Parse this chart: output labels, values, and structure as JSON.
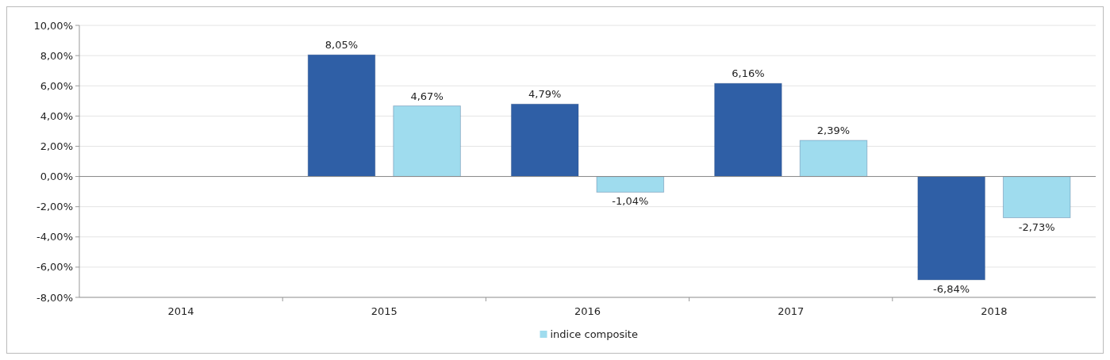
{
  "chart_data": {
    "type": "bar",
    "categories": [
      "2014",
      "2015",
      "2016",
      "2017",
      "2018"
    ],
    "series": [
      {
        "color": "#2f5fa6",
        "values": [
          null,
          8.05,
          4.79,
          6.16,
          -6.84
        ],
        "value_labels": [
          null,
          "8,05%",
          "4,79%",
          "6,16%",
          "-6,84%"
        ]
      },
      {
        "name": "indice composite",
        "color": "#9fdcee",
        "values": [
          null,
          4.67,
          -1.04,
          2.39,
          -2.73
        ],
        "value_labels": [
          null,
          "4,67%",
          "-1,04%",
          "2,39%",
          "-2,73%"
        ]
      }
    ],
    "ylim": [
      -8,
      10
    ],
    "yticks": [
      {
        "value": -8,
        "label": "-8,00%"
      },
      {
        "value": -6,
        "label": "-6,00%"
      },
      {
        "value": -4,
        "label": "-4,00%"
      },
      {
        "value": -2,
        "label": "-2,00%"
      },
      {
        "value": 0,
        "label": "0,00%"
      },
      {
        "value": 2,
        "label": "2,00%"
      },
      {
        "value": 4,
        "label": "4,00%"
      },
      {
        "value": 6,
        "label": "6,00%"
      },
      {
        "value": 8,
        "label": "8,00%"
      },
      {
        "value": 10,
        "label": "10,00%"
      }
    ],
    "grid": "y",
    "legend": "bottom"
  }
}
